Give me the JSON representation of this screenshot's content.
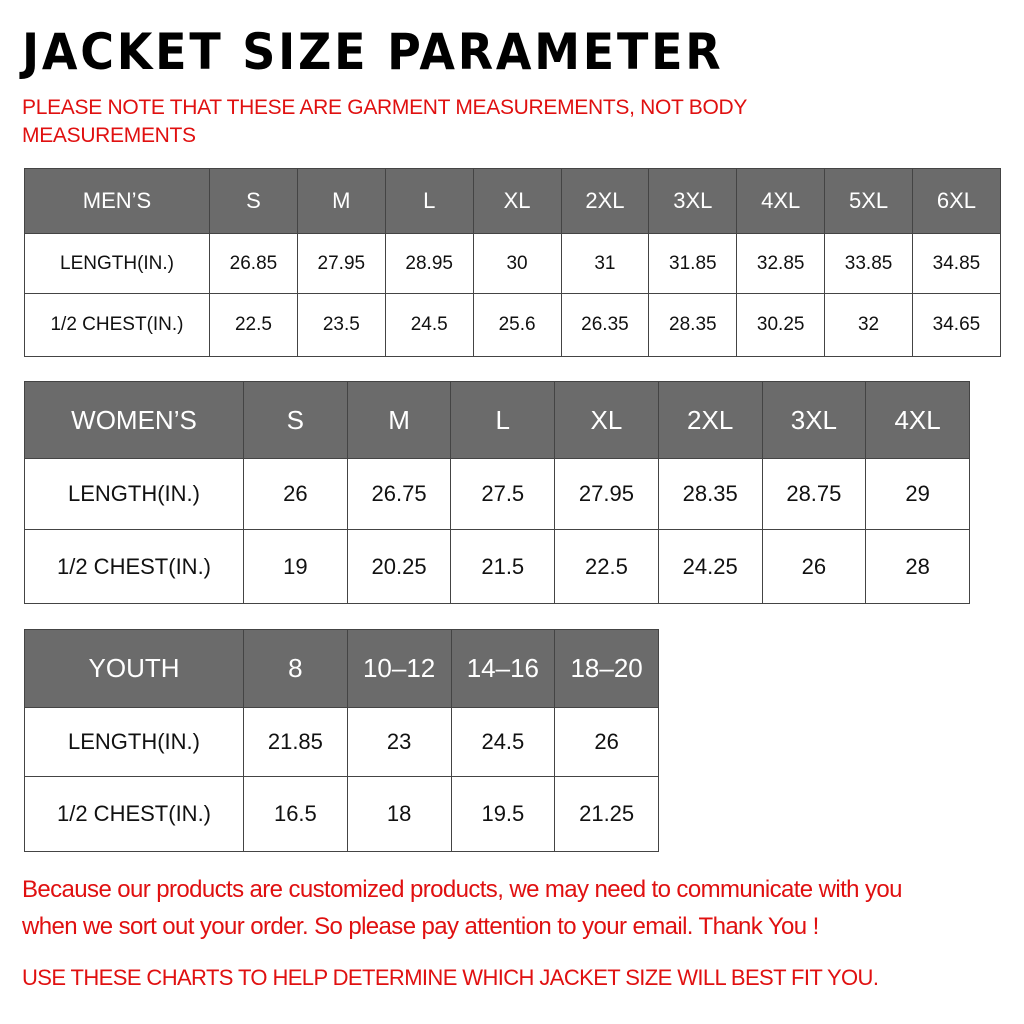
{
  "title": "JACKET SIZE PARAMETER",
  "note": "PLEASE NOTE THAT THESE ARE GARMENT MEASUREMENTS, NOT BODY MEASUREMENTS",
  "colors": {
    "header_bg": "#6b6b6b",
    "note_red": "#e01010"
  },
  "tables": {
    "men": {
      "headers": [
        "MEN’S",
        "S",
        "M",
        "L",
        "XL",
        "2XL",
        "3XL",
        "4XL",
        "5XL",
        "6XL"
      ],
      "rows": [
        [
          "LENGTH(IN.)",
          "26.85",
          "27.95",
          "28.95",
          "30",
          "31",
          "31.85",
          "32.85",
          "33.85",
          "34.85"
        ],
        [
          "1/2 CHEST(IN.)",
          "22.5",
          "23.5",
          "24.5",
          "25.6",
          "26.35",
          "28.35",
          "30.25",
          "32",
          "34.65"
        ]
      ]
    },
    "women": {
      "headers": [
        "WOMEN’S",
        "S",
        "M",
        "L",
        "XL",
        "2XL",
        "3XL",
        "4XL"
      ],
      "rows": [
        [
          "LENGTH(IN.)",
          "26",
          "26.75",
          "27.5",
          "27.95",
          "28.35",
          "28.75",
          "29"
        ],
        [
          "1/2 CHEST(IN.)",
          "19",
          "20.25",
          "21.5",
          "22.5",
          "24.25",
          "26",
          "28"
        ]
      ]
    },
    "youth": {
      "headers": [
        "YOUTH",
        "8",
        "10–12",
        "14–16",
        "18–20"
      ],
      "rows": [
        [
          "LENGTH(IN.)",
          "21.85",
          "23",
          "24.5",
          "26"
        ],
        [
          "1/2 CHEST(IN.)",
          "16.5",
          "18",
          "19.5",
          "21.25"
        ]
      ]
    }
  },
  "footer": {
    "line1": "Because our products are customized products, we may need to communicate with you",
    "line2": "when we sort out your order. So please pay attention to your email. Thank You !",
    "line3": "USE THESE CHARTS TO HELP DETERMINE WHICH JACKET SIZE WILL BEST FIT YOU."
  }
}
